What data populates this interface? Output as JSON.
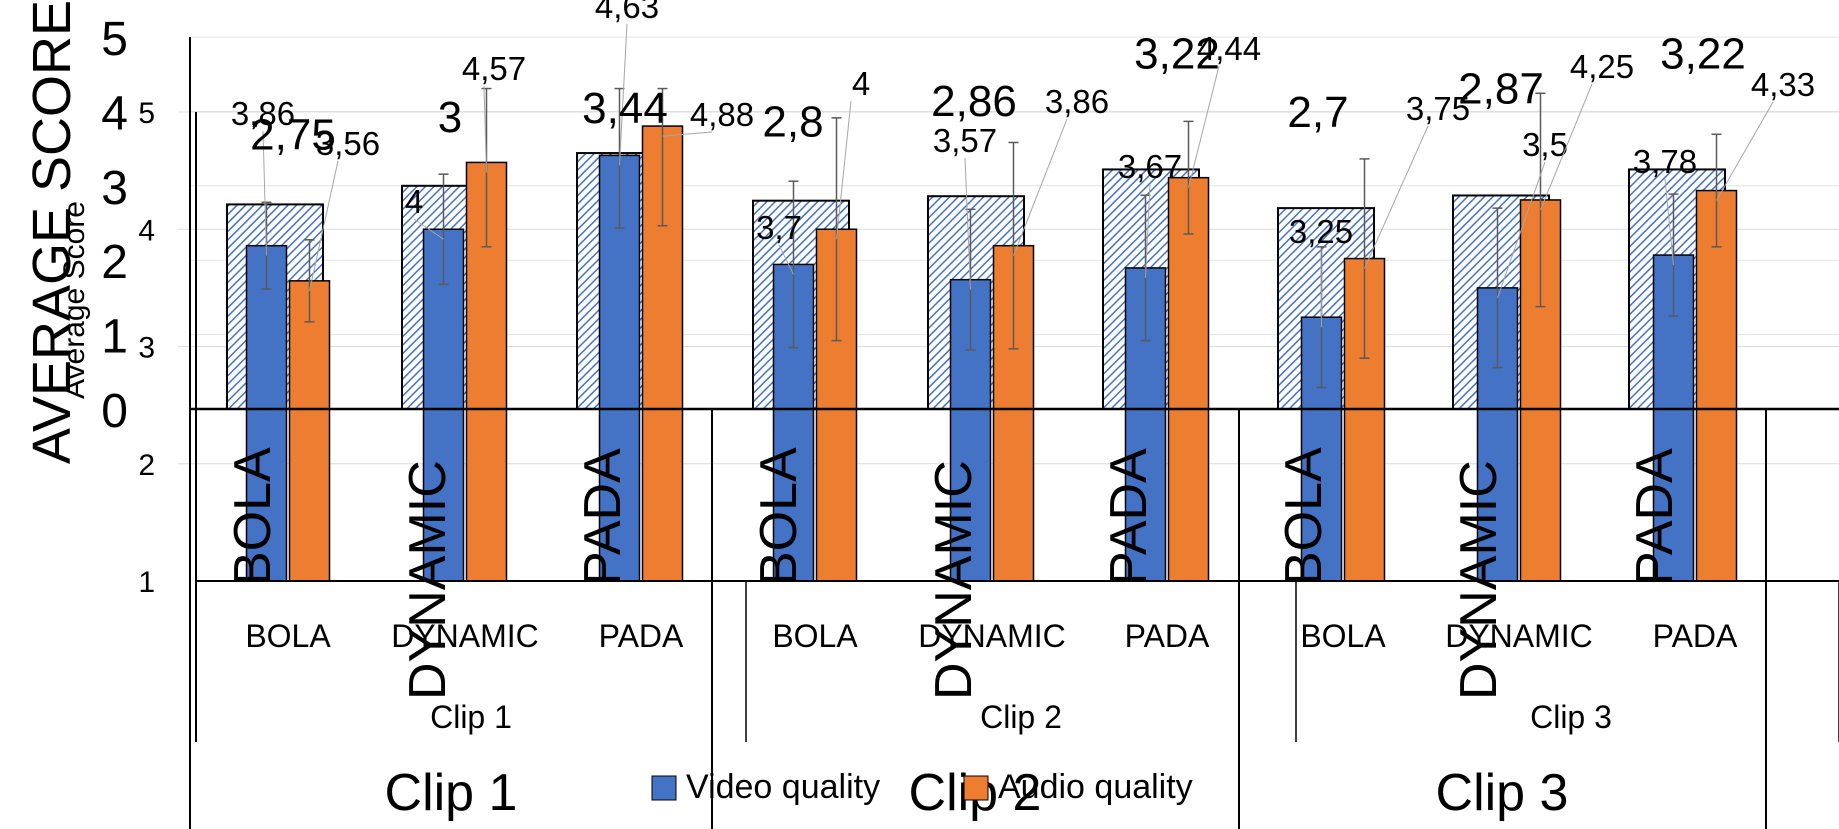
{
  "chart_data": [
    {
      "type": "bar",
      "ylabel": "AVERAGE SCORE",
      "ylim": [
        0,
        5
      ],
      "yticks": [
        "0",
        "1",
        "2",
        "3",
        "4",
        "5"
      ],
      "groups": [
        "Clip 1",
        "Clip 2",
        "Clip 3"
      ],
      "categories": [
        "BOLA",
        "DYNAMIC",
        "PADA",
        "BOLA",
        "DYNAMIC",
        "PADA",
        "BOLA",
        "DYNAMIC",
        "PADA"
      ],
      "pattern_color": "#4472C4",
      "series": [
        {
          "values": [
            2.75,
            3,
            3.44,
            2.8,
            2.86,
            3.22,
            2.7,
            2.87,
            3.22
          ],
          "labels": [
            "2,75",
            "3",
            "3,44",
            "2,8",
            "2,86",
            "3,22",
            "2,7",
            "2,87",
            "3,22"
          ]
        }
      ]
    },
    {
      "type": "bar",
      "ylabel": "Average Score",
      "ylim": [
        1,
        5
      ],
      "yticks": [
        "1",
        "2",
        "3",
        "4",
        "5"
      ],
      "groups": [
        "Clip 1",
        "Clip 2",
        "Clip 3"
      ],
      "categories": [
        "BOLA",
        "DYNAMIC",
        "PADA",
        "BOLA",
        "DYNAMIC",
        "PADA",
        "BOLA",
        "DYNAMIC",
        "PADA"
      ],
      "legend_position": "bottom",
      "series": [
        {
          "name": "Video quality",
          "color": "#4472C4",
          "values": [
            3.86,
            4,
            4.63,
            3.7,
            3.57,
            3.67,
            3.25,
            3.5,
            3.78
          ],
          "labels": [
            "3,86",
            "4",
            "4,63",
            "3,7",
            "3,57",
            "3,67",
            "3,25",
            "3,5",
            "3,78"
          ]
        },
        {
          "name": "Audio quality",
          "color": "#ED7D31",
          "values": [
            3.56,
            4.57,
            4.88,
            4,
            3.86,
            4.44,
            3.75,
            4.25,
            4.33
          ],
          "labels": [
            "3,56",
            "4,57",
            "4,88",
            "4",
            "3,86",
            "4,44",
            "3,75",
            "4,25",
            "4,33"
          ]
        }
      ]
    }
  ]
}
